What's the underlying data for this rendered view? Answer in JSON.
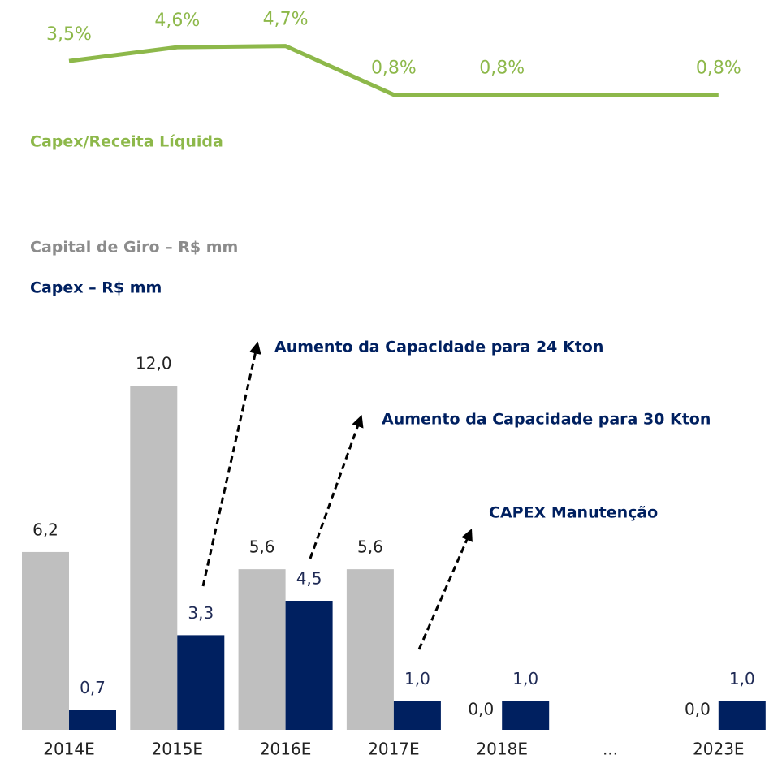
{
  "chart_data": [
    {
      "type": "line",
      "title": "Capex/Receita Líquida",
      "color": "#8db84a",
      "values": [
        3.5,
        4.6,
        4.7,
        0.8,
        0.8,
        0.8
      ],
      "value_labels": [
        "3,5%",
        "4,6%",
        "4,7%",
        "0,8%",
        "0,8%",
        "0,8%"
      ],
      "ylim": [
        0,
        5
      ]
    },
    {
      "type": "bar",
      "categories": [
        "2014E",
        "2015E",
        "2016E",
        "2017E",
        "2018E",
        "...",
        "2023E"
      ],
      "series": [
        {
          "name": "Capital de Giro – R$ mm",
          "color": "#bfbfbf",
          "values": [
            6.2,
            12.0,
            5.6,
            5.6,
            0.0,
            null,
            0.0
          ],
          "value_labels": [
            "6,2",
            "12,0",
            "5,6",
            "5,6",
            "0,0",
            null,
            "0,0"
          ]
        },
        {
          "name": "Capex – R$ mm",
          "color": "#002060",
          "values": [
            0.7,
            3.3,
            4.5,
            1.0,
            1.0,
            null,
            1.0
          ],
          "value_labels": [
            "0,7",
            "3,3",
            "4,5",
            "1,0",
            "1,0",
            null,
            "1,0"
          ]
        }
      ],
      "ylim": [
        0,
        12
      ],
      "annotations": [
        "Aumento da Capacidade para 24 Kton",
        "Aumento da Capacidade para 30 Kton",
        "CAPEX Manutenção"
      ]
    }
  ]
}
